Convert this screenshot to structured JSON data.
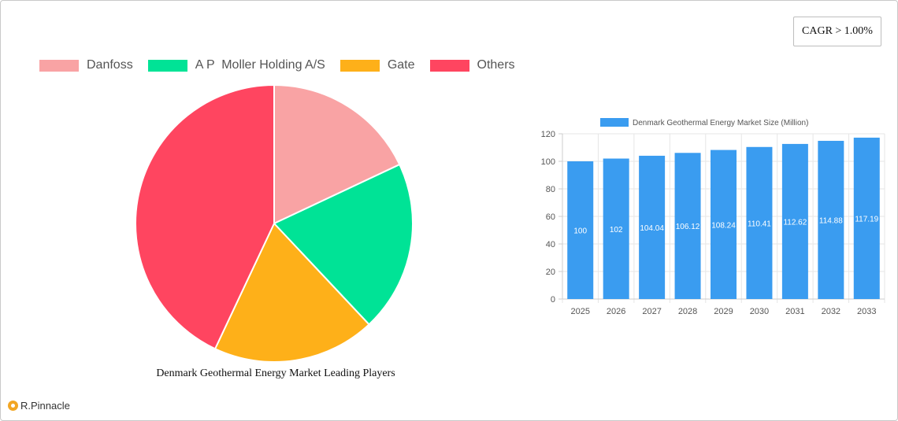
{
  "badge": {
    "cagr": "CAGR > 1.00%"
  },
  "brand": {
    "name": "R.Pinnacle"
  },
  "chart_data": [
    {
      "type": "pie",
      "title": "Denmark Geothermal Energy Market Leading Players",
      "legend_position": "top",
      "slices": [
        {
          "label": "Danfoss",
          "value": 18,
          "color": "#f9a3a4"
        },
        {
          "label": "A P  Moller Holding A/S",
          "value": 20,
          "color": "#00e396"
        },
        {
          "label": "Gate",
          "value": 19,
          "color": "#feb019"
        },
        {
          "label": "Others",
          "value": 43,
          "color": "#ff4560"
        }
      ]
    },
    {
      "type": "bar",
      "title": "",
      "legend_position": "top",
      "categories": [
        "2025",
        "2026",
        "2027",
        "2028",
        "2029",
        "2030",
        "2031",
        "2032",
        "2033"
      ],
      "series": [
        {
          "name": "Denmark Geothermal Energy Market Size (Million)",
          "color": "#3a9cf0",
          "values": [
            100,
            102,
            104.04,
            106.12,
            108.24,
            110.41,
            112.62,
            114.88,
            117.19
          ]
        }
      ],
      "ylim": [
        0,
        120
      ],
      "yticks": [
        "0",
        "20",
        "40",
        "60",
        "80",
        "100",
        "120"
      ],
      "grid": true
    }
  ]
}
